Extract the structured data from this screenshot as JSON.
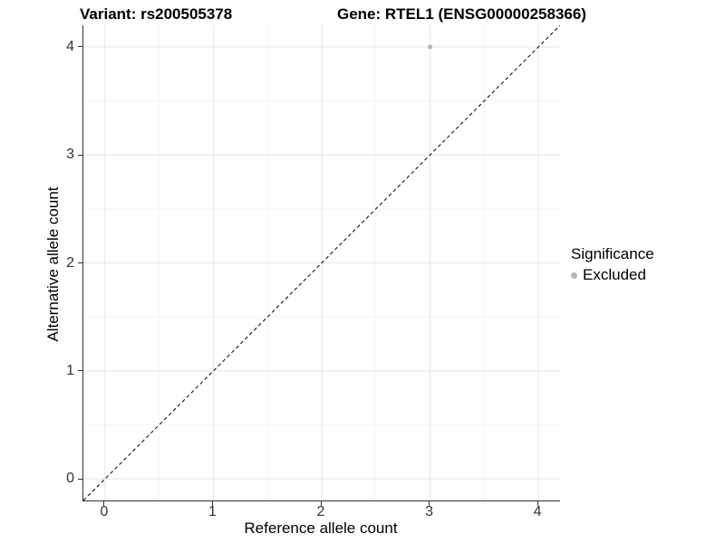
{
  "titles": {
    "variant": "Variant: rs200505378",
    "gene": "Gene: RTEL1 (ENSG00000258366)"
  },
  "axes": {
    "x_label": "Reference allele count",
    "y_label": "Alternative allele count"
  },
  "legend": {
    "title": "Significance",
    "items": [
      {
        "label": "Excluded",
        "color": "#b3b3b3"
      }
    ]
  },
  "colors": {
    "background": "#ffffff",
    "grid_major": "#e8e8e8",
    "grid_minor": "#f4f4f4",
    "axis_line": "#333333",
    "tick_text": "#333333",
    "identity_line": "#000000",
    "point_excluded": "#b3b3b3"
  },
  "chart_data": {
    "type": "scatter",
    "title": "Variant: rs200505378   Gene: RTEL1 (ENSG00000258366)",
    "xlabel": "Reference allele count",
    "ylabel": "Alternative allele count",
    "xlim": [
      -0.2,
      4.2
    ],
    "ylim": [
      -0.2,
      4.2
    ],
    "x_ticks": [
      0,
      1,
      2,
      3,
      4
    ],
    "y_ticks": [
      0,
      1,
      2,
      3,
      4
    ],
    "grid": "major+minor",
    "legend_position": "right",
    "reference_line": {
      "type": "identity y=x",
      "style": "dashed",
      "color": "#000000",
      "from": [
        -0.2,
        -0.2
      ],
      "to": [
        4.2,
        4.2
      ]
    },
    "series": [
      {
        "name": "Excluded",
        "color": "#b3b3b3",
        "marker": "circle",
        "marker_radius_px": 2.5,
        "points": [
          {
            "x": 3,
            "y": 4
          }
        ]
      }
    ]
  }
}
